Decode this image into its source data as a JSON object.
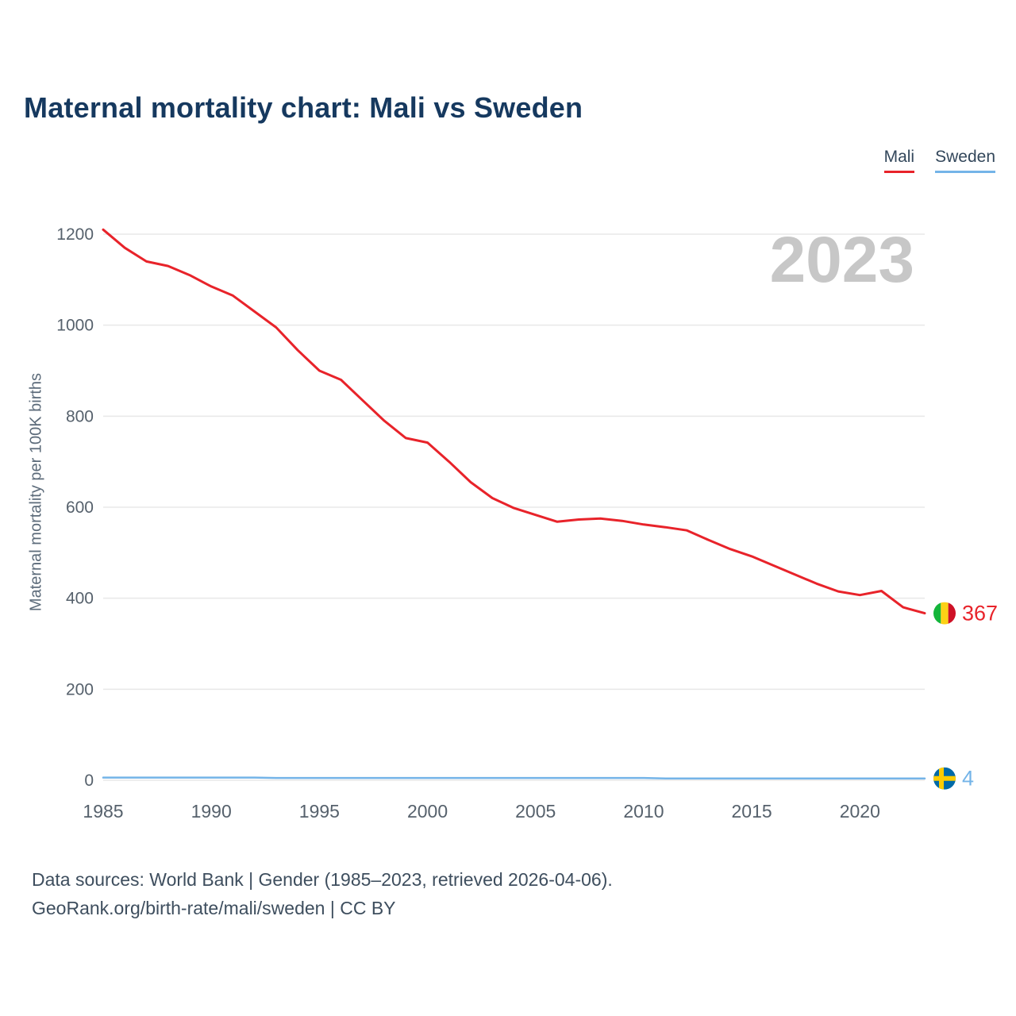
{
  "title": "Maternal mortality chart: Mali vs Sweden",
  "legend": {
    "items": [
      {
        "label": "Mali",
        "color": "#e8232a"
      },
      {
        "label": "Sweden",
        "color": "#74b4e8"
      }
    ]
  },
  "chart_data": {
    "type": "line",
    "title": "Maternal mortality chart: Mali vs Sweden",
    "ylabel": "Maternal mortality per 100K births",
    "xlabel": "",
    "watermark": "2023",
    "grid": true,
    "legend_position": "top-right",
    "ylim": [
      0,
      1200
    ],
    "yticks": [
      0,
      200,
      400,
      600,
      800,
      1000,
      1200
    ],
    "xticks": [
      1985,
      1990,
      1995,
      2000,
      2005,
      2010,
      2015,
      2020
    ],
    "x": [
      1985,
      1986,
      1987,
      1988,
      1989,
      1990,
      1991,
      1992,
      1993,
      1994,
      1995,
      1996,
      1997,
      1998,
      1999,
      2000,
      2001,
      2002,
      2003,
      2004,
      2005,
      2006,
      2007,
      2008,
      2009,
      2010,
      2011,
      2012,
      2013,
      2014,
      2015,
      2016,
      2017,
      2018,
      2019,
      2020,
      2021,
      2022,
      2023
    ],
    "series": [
      {
        "name": "Mali",
        "color": "#e8232a",
        "end_label": "367",
        "flag": "mali",
        "values": [
          1210,
          1170,
          1140,
          1130,
          1110,
          1085,
          1065,
          1030,
          995,
          945,
          900,
          880,
          835,
          790,
          752,
          742,
          700,
          655,
          620,
          598,
          583,
          568,
          573,
          575,
          570,
          562,
          556,
          549,
          528,
          508,
          492,
          472,
          452,
          432,
          415,
          407,
          416,
          380,
          367
        ]
      },
      {
        "name": "Sweden",
        "color": "#74b4e8",
        "end_label": "4",
        "flag": "sweden",
        "values": [
          6,
          6,
          6,
          6,
          6,
          6,
          6,
          6,
          5,
          5,
          5,
          5,
          5,
          5,
          5,
          5,
          5,
          5,
          5,
          5,
          5,
          5,
          5,
          5,
          5,
          5,
          4,
          4,
          4,
          4,
          4,
          4,
          4,
          4,
          4,
          4,
          4,
          4,
          4
        ]
      }
    ],
    "flag_colors": {
      "mali": [
        "#14b53a",
        "#fcd116",
        "#ce1126"
      ],
      "sweden": {
        "field": "#006aa7",
        "cross": "#fecc00"
      }
    }
  },
  "footer": {
    "line1": "Data sources: World Bank | Gender (1985–2023, retrieved 2026-04-06).",
    "line2": "GeoRank.org/birth-rate/mali/sweden | CC BY"
  }
}
